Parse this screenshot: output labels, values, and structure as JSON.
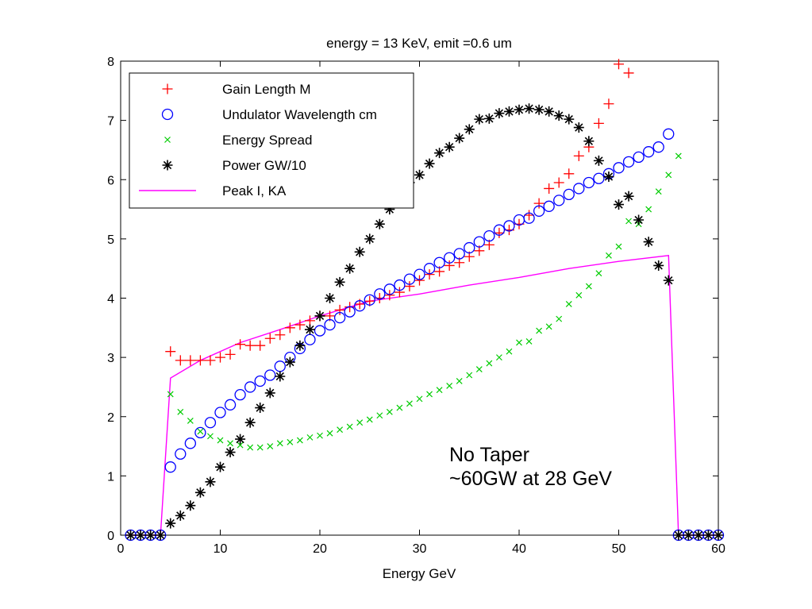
{
  "chart_data": {
    "type": "scatter",
    "title": "energy = 13 KeV, emit =0.6 um",
    "xlabel": "Energy GeV",
    "ylabel": "",
    "xlim": [
      0,
      60
    ],
    "ylim": [
      0,
      8
    ],
    "xticks": [
      0,
      10,
      20,
      30,
      40,
      50,
      60
    ],
    "yticks": [
      0,
      1,
      2,
      3,
      4,
      5,
      6,
      7,
      8
    ],
    "grid": false,
    "legend_position": "top-left",
    "annotations": [
      "No Taper",
      "~60GW at 28 GeV"
    ],
    "series": [
      {
        "name": "Gain Length M",
        "marker": "plus",
        "color": "#ff0000",
        "points": [
          [
            5,
            3.1
          ],
          [
            6,
            2.95
          ],
          [
            7,
            2.95
          ],
          [
            8,
            2.95
          ],
          [
            9,
            2.95
          ],
          [
            10,
            3.0
          ],
          [
            11,
            3.05
          ],
          [
            12,
            3.22
          ],
          [
            13,
            3.2
          ],
          [
            14,
            3.2
          ],
          [
            15,
            3.32
          ],
          [
            16,
            3.38
          ],
          [
            17,
            3.5
          ],
          [
            18,
            3.55
          ],
          [
            19,
            3.62
          ],
          [
            20,
            3.7
          ],
          [
            21,
            3.7
          ],
          [
            22,
            3.8
          ],
          [
            23,
            3.85
          ],
          [
            24,
            3.9
          ],
          [
            25,
            3.95
          ],
          [
            26,
            4.0
          ],
          [
            27,
            4.05
          ],
          [
            28,
            4.1
          ],
          [
            29,
            4.2
          ],
          [
            30,
            4.3
          ],
          [
            31,
            4.4
          ],
          [
            32,
            4.45
          ],
          [
            33,
            4.55
          ],
          [
            34,
            4.6
          ],
          [
            35,
            4.7
          ],
          [
            36,
            4.8
          ],
          [
            37,
            4.9
          ],
          [
            38,
            5.1
          ],
          [
            39,
            5.15
          ],
          [
            40,
            5.25
          ],
          [
            41,
            5.4
          ],
          [
            42,
            5.6
          ],
          [
            43,
            5.85
          ],
          [
            44,
            5.95
          ],
          [
            45,
            6.1
          ],
          [
            46,
            6.4
          ],
          [
            47,
            6.55
          ],
          [
            48,
            6.95
          ],
          [
            49,
            7.28
          ],
          [
            50,
            7.95
          ],
          [
            51,
            7.8
          ]
        ]
      },
      {
        "name": "Undulator Wavelength cm",
        "marker": "circle",
        "color": "#0000ff",
        "points": [
          [
            1,
            0
          ],
          [
            2,
            0
          ],
          [
            3,
            0
          ],
          [
            4,
            0
          ],
          [
            5,
            1.15
          ],
          [
            6,
            1.37
          ],
          [
            7,
            1.55
          ],
          [
            8,
            1.73
          ],
          [
            9,
            1.9
          ],
          [
            10,
            2.07
          ],
          [
            11,
            2.2
          ],
          [
            12,
            2.37
          ],
          [
            13,
            2.5
          ],
          [
            14,
            2.6
          ],
          [
            15,
            2.7
          ],
          [
            16,
            2.85
          ],
          [
            17,
            3.0
          ],
          [
            18,
            3.15
          ],
          [
            19,
            3.3
          ],
          [
            20,
            3.45
          ],
          [
            21,
            3.55
          ],
          [
            22,
            3.67
          ],
          [
            23,
            3.77
          ],
          [
            24,
            3.87
          ],
          [
            25,
            3.97
          ],
          [
            26,
            4.07
          ],
          [
            27,
            4.15
          ],
          [
            28,
            4.22
          ],
          [
            29,
            4.32
          ],
          [
            30,
            4.4
          ],
          [
            31,
            4.5
          ],
          [
            32,
            4.6
          ],
          [
            33,
            4.68
          ],
          [
            34,
            4.75
          ],
          [
            35,
            4.85
          ],
          [
            36,
            4.95
          ],
          [
            37,
            5.05
          ],
          [
            38,
            5.15
          ],
          [
            39,
            5.22
          ],
          [
            40,
            5.32
          ],
          [
            41,
            5.35
          ],
          [
            42,
            5.47
          ],
          [
            43,
            5.55
          ],
          [
            44,
            5.65
          ],
          [
            45,
            5.75
          ],
          [
            46,
            5.85
          ],
          [
            47,
            5.95
          ],
          [
            48,
            6.02
          ],
          [
            49,
            6.1
          ],
          [
            50,
            6.2
          ],
          [
            51,
            6.3
          ],
          [
            52,
            6.38
          ],
          [
            53,
            6.47
          ],
          [
            54,
            6.55
          ],
          [
            55,
            6.77
          ],
          [
            56,
            0
          ],
          [
            57,
            0
          ],
          [
            58,
            0
          ],
          [
            59,
            0
          ],
          [
            60,
            0
          ]
        ]
      },
      {
        "name": "Energy Spread",
        "marker": "x",
        "color": "#00cc00",
        "points": [
          [
            5,
            2.38
          ],
          [
            6,
            2.08
          ],
          [
            7,
            1.93
          ],
          [
            8,
            1.75
          ],
          [
            9,
            1.67
          ],
          [
            10,
            1.6
          ],
          [
            11,
            1.55
          ],
          [
            12,
            1.52
          ],
          [
            13,
            1.48
          ],
          [
            14,
            1.48
          ],
          [
            15,
            1.5
          ],
          [
            16,
            1.55
          ],
          [
            17,
            1.57
          ],
          [
            18,
            1.6
          ],
          [
            19,
            1.65
          ],
          [
            20,
            1.68
          ],
          [
            21,
            1.72
          ],
          [
            22,
            1.78
          ],
          [
            23,
            1.83
          ],
          [
            24,
            1.9
          ],
          [
            25,
            1.95
          ],
          [
            26,
            2.02
          ],
          [
            27,
            2.08
          ],
          [
            28,
            2.15
          ],
          [
            29,
            2.22
          ],
          [
            30,
            2.3
          ],
          [
            31,
            2.38
          ],
          [
            32,
            2.45
          ],
          [
            33,
            2.52
          ],
          [
            34,
            2.6
          ],
          [
            35,
            2.7
          ],
          [
            36,
            2.8
          ],
          [
            37,
            2.9
          ],
          [
            38,
            3.0
          ],
          [
            39,
            3.1
          ],
          [
            40,
            3.25
          ],
          [
            41,
            3.27
          ],
          [
            42,
            3.45
          ],
          [
            43,
            3.52
          ],
          [
            44,
            3.65
          ],
          [
            45,
            3.9
          ],
          [
            46,
            4.05
          ],
          [
            47,
            4.2
          ],
          [
            48,
            4.42
          ],
          [
            49,
            4.72
          ],
          [
            50,
            4.87
          ],
          [
            51,
            5.3
          ],
          [
            52,
            5.25
          ],
          [
            53,
            5.5
          ],
          [
            54,
            5.8
          ],
          [
            55,
            6.08
          ],
          [
            56,
            6.4
          ]
        ]
      },
      {
        "name": "Power GW/10",
        "marker": "star",
        "color": "#000000",
        "points": [
          [
            1,
            0
          ],
          [
            2,
            0
          ],
          [
            3,
            0
          ],
          [
            4,
            0
          ],
          [
            5,
            0.2
          ],
          [
            6,
            0.33
          ],
          [
            7,
            0.5
          ],
          [
            8,
            0.72
          ],
          [
            9,
            0.9
          ],
          [
            10,
            1.15
          ],
          [
            11,
            1.4
          ],
          [
            12,
            1.62
          ],
          [
            13,
            1.9
          ],
          [
            14,
            2.15
          ],
          [
            15,
            2.4
          ],
          [
            16,
            2.68
          ],
          [
            17,
            2.92
          ],
          [
            18,
            3.2
          ],
          [
            19,
            3.47
          ],
          [
            20,
            3.7
          ],
          [
            21,
            4.0
          ],
          [
            22,
            4.27
          ],
          [
            23,
            4.5
          ],
          [
            24,
            4.78
          ],
          [
            25,
            5.0
          ],
          [
            26,
            5.25
          ],
          [
            27,
            5.5
          ],
          [
            28,
            5.75
          ],
          [
            29,
            5.95
          ],
          [
            30,
            6.08
          ],
          [
            31,
            6.27
          ],
          [
            32,
            6.45
          ],
          [
            33,
            6.55
          ],
          [
            34,
            6.7
          ],
          [
            35,
            6.85
          ],
          [
            36,
            7.02
          ],
          [
            37,
            7.03
          ],
          [
            38,
            7.12
          ],
          [
            39,
            7.15
          ],
          [
            40,
            7.18
          ],
          [
            41,
            7.2
          ],
          [
            42,
            7.18
          ],
          [
            43,
            7.15
          ],
          [
            44,
            7.08
          ],
          [
            45,
            7.02
          ],
          [
            46,
            6.88
          ],
          [
            47,
            6.65
          ],
          [
            48,
            6.32
          ],
          [
            49,
            6.05
          ],
          [
            50,
            5.58
          ],
          [
            51,
            5.72
          ],
          [
            52,
            5.32
          ],
          [
            53,
            4.95
          ],
          [
            54,
            4.55
          ],
          [
            55,
            4.3
          ],
          [
            56,
            0
          ],
          [
            57,
            0
          ],
          [
            58,
            0
          ],
          [
            59,
            0
          ],
          [
            60,
            0
          ]
        ]
      },
      {
        "name": "Peak I, KA",
        "marker": "line",
        "color": "#ff00ff",
        "points": [
          [
            0.5,
            0
          ],
          [
            4,
            0
          ],
          [
            5,
            2.65
          ],
          [
            8,
            2.95
          ],
          [
            12,
            3.25
          ],
          [
            16,
            3.47
          ],
          [
            20,
            3.7
          ],
          [
            25,
            3.95
          ],
          [
            30,
            4.07
          ],
          [
            35,
            4.22
          ],
          [
            40,
            4.35
          ],
          [
            45,
            4.5
          ],
          [
            50,
            4.62
          ],
          [
            55,
            4.72
          ],
          [
            56,
            0
          ],
          [
            60,
            0
          ]
        ]
      }
    ]
  }
}
